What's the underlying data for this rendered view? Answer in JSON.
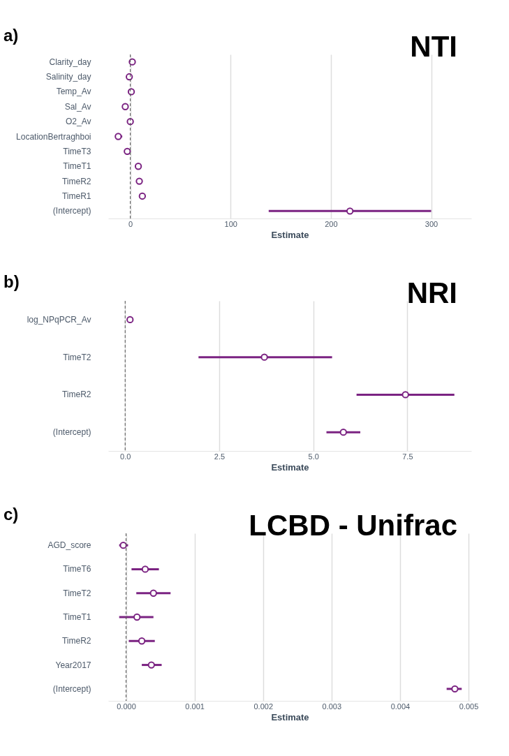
{
  "chart_data": [
    {
      "type": "scatter",
      "orientation": "horizontal",
      "title": "NTI",
      "xlabel": "Estimate",
      "annotations": [
        "a)"
      ],
      "categories": [
        "Clarity_day",
        "Salinity_day",
        "Temp_Av",
        "Sal_Av",
        "O2_Av",
        "LocationBertraghboi",
        "TimeT3",
        "TimeT1",
        "TimeR2",
        "TimeR1",
        "(Intercept)"
      ],
      "series": [
        {
          "color": "#7b2382",
          "values": [
            2,
            -1,
            1,
            -5,
            0,
            -12,
            -3,
            8,
            9,
            12,
            219
          ],
          "errors": [
            null,
            null,
            null,
            null,
            null,
            [
              -15,
              -8
            ],
            null,
            [
              6,
              11
            ],
            [
              7,
              10
            ],
            [
              9,
              15
            ],
            [
              138,
              300
            ]
          ]
        }
      ],
      "xlim": [
        -22,
        340
      ],
      "xticks": [
        0,
        100,
        200,
        300
      ],
      "grid": "x",
      "marker": "circle",
      "ref_lines": [
        {
          "axis": "x",
          "value": 0,
          "line_style": "dashed",
          "color": "#555555"
        }
      ]
    },
    {
      "type": "scatter",
      "orientation": "horizontal",
      "title": "NRI",
      "xlabel": "Estimate",
      "annotations": [
        "b)"
      ],
      "categories": [
        "log_NPqPCR_Av",
        "TimeT2",
        "TimeR2",
        "(Intercept)"
      ],
      "series": [
        {
          "color": "#7b2382",
          "values": [
            0.13,
            3.7,
            7.45,
            5.8
          ],
          "errors": [
            null,
            [
              1.95,
              5.5
            ],
            [
              6.15,
              8.75
            ],
            [
              5.35,
              6.25
            ]
          ]
        }
      ],
      "xlim": [
        -0.45,
        9.2
      ],
      "xticks": [
        {
          "value": 0,
          "label": "0.0"
        },
        2.5,
        {
          "value": 5,
          "label": "5.0"
        },
        7.5
      ],
      "grid": "x",
      "marker": "circle",
      "ref_lines": [
        {
          "axis": "x",
          "value": 0,
          "line_style": "dashed",
          "color": "#555555"
        }
      ]
    },
    {
      "type": "scatter",
      "orientation": "horizontal",
      "title": "LCBD - Unifrac",
      "xlabel": "Estimate",
      "annotations": [
        "c)"
      ],
      "categories": [
        "AGD_score",
        "TimeT6",
        "TimeT2",
        "TimeT1",
        "TimeR2",
        "Year2017",
        "(Intercept)"
      ],
      "series": [
        {
          "color": "#7b2382",
          "values": [
            -4e-05,
            0.00028,
            0.0004,
            0.00016,
            0.00023,
            0.00037,
            0.0048
          ],
          "errors": [
            [
              -0.0001,
              3e-05
            ],
            [
              8e-05,
              0.00048
            ],
            [
              0.00015,
              0.00065
            ],
            [
              -0.0001,
              0.0004
            ],
            [
              4e-05,
              0.00042
            ],
            [
              0.00023,
              0.00052
            ],
            [
              0.00468,
              0.0049
            ]
          ]
        }
      ],
      "xlim": [
        -0.00026,
        0.00504
      ],
      "xticks": [
        {
          "value": 0,
          "label": "0.000"
        },
        {
          "value": 0.001,
          "label": "0.001"
        },
        {
          "value": 0.002,
          "label": "0.002"
        },
        {
          "value": 0.003,
          "label": "0.003"
        },
        {
          "value": 0.004,
          "label": "0.004"
        },
        {
          "value": 0.005,
          "label": "0.005"
        }
      ],
      "grid": "x",
      "marker": "circle",
      "ref_lines": [
        {
          "axis": "x",
          "value": 0,
          "line_style": "dashed",
          "color": "#555555"
        }
      ]
    }
  ]
}
